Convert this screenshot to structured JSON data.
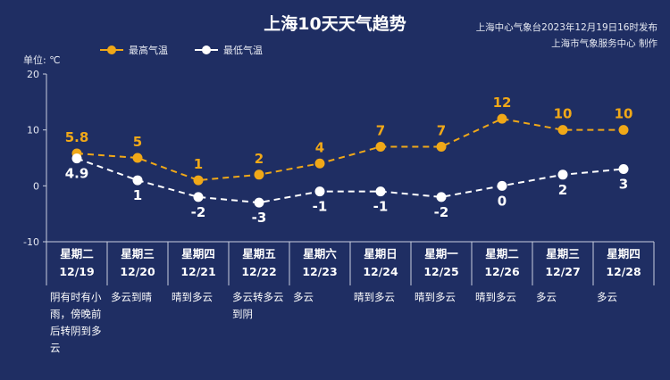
{
  "header": {
    "title": "上海10天天气趋势",
    "source_line1": "上海中心气象台2023年12月19日16时发布",
    "source_line2": "上海市气象服务中心 制作"
  },
  "legend": {
    "high_label": "最高气温",
    "low_label": "最低气温"
  },
  "unit_label": "单位: ℃",
  "colors": {
    "background": "#1f2e63",
    "high": "#f0a818",
    "low": "#ffffff",
    "axis": "#c9cfdf"
  },
  "chart_data": {
    "type": "line",
    "categories": [
      "12/19",
      "12/20",
      "12/21",
      "12/22",
      "12/23",
      "12/24",
      "12/25",
      "12/26",
      "12/27",
      "12/28"
    ],
    "weekdays": [
      "星期二",
      "星期三",
      "星期四",
      "星期五",
      "星期六",
      "星期日",
      "星期一",
      "星期二",
      "星期三",
      "星期四"
    ],
    "series": [
      {
        "name": "最高气温",
        "values": [
          5.8,
          5,
          1,
          2,
          4,
          7,
          7,
          12,
          10,
          10
        ]
      },
      {
        "name": "最低气温",
        "values": [
          4.9,
          1,
          -2,
          -3,
          -1,
          -1,
          -2,
          0,
          2,
          3
        ]
      }
    ],
    "ylim": [
      -10,
      20
    ],
    "yticks": [
      "20",
      "10",
      "0",
      "-10"
    ],
    "ytick_values": [
      20,
      10,
      0,
      -10
    ],
    "high_labels": [
      "5.8",
      "5",
      "1",
      "2",
      "4",
      "7",
      "7",
      "12",
      "10",
      "10"
    ],
    "low_labels": [
      "4.9",
      "1",
      "-2",
      "-3",
      "-1",
      "-1",
      "-2",
      "0",
      "2",
      "3"
    ],
    "line_style": "dashed",
    "legend_position": "top-left",
    "grid": false
  },
  "descriptions": [
    "阴有时有小雨，傍晚前后转阴到多云",
    "多云到晴",
    "晴到多云",
    "多云转多云到阴",
    "多云",
    "晴到多云",
    "晴到多云",
    "晴到多云",
    "多云",
    "多云"
  ],
  "descriptions_lines": [
    [
      "阴有时有小",
      "雨，傍晚前",
      "后转阴到多",
      "云"
    ],
    [
      "多云到晴"
    ],
    [
      "晴到多云"
    ],
    [
      "多云转多云",
      "到阴"
    ],
    [
      "多云"
    ],
    [
      "晴到多云"
    ],
    [
      "晴到多云"
    ],
    [
      "晴到多云"
    ],
    [
      "多云"
    ],
    [
      "多云"
    ]
  ]
}
